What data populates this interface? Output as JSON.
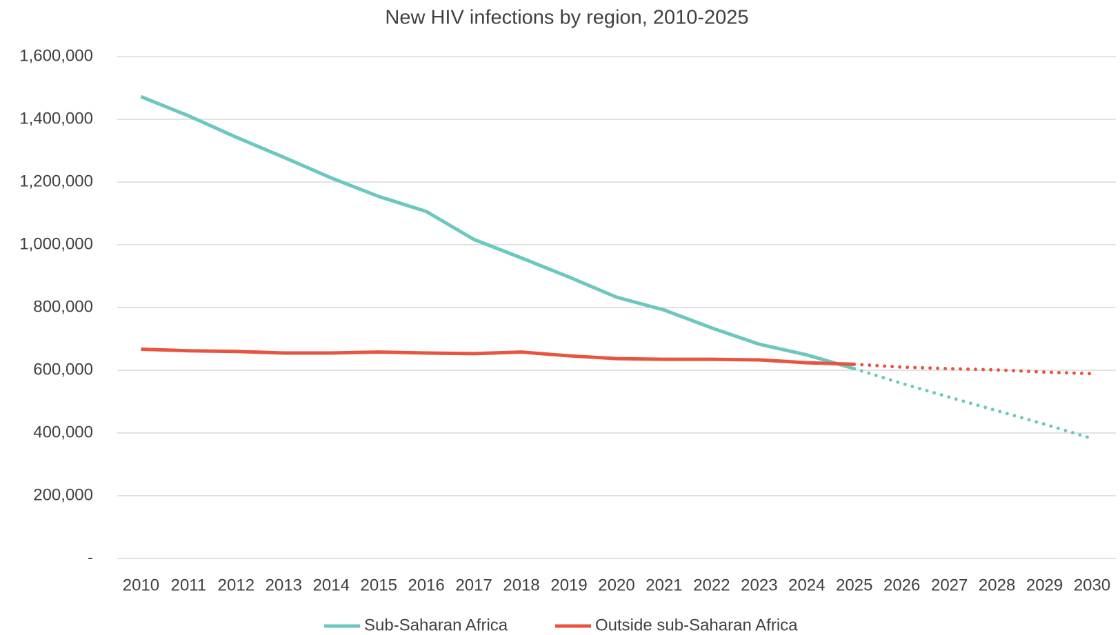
{
  "chart_data": {
    "type": "line",
    "title": "New HIV infections by region, 2010-2025",
    "categories": [
      "2010",
      "2011",
      "2012",
      "2013",
      "2014",
      "2015",
      "2016",
      "2017",
      "2018",
      "2019",
      "2020",
      "2021",
      "2022",
      "2023",
      "2024",
      "2025",
      "2026",
      "2027",
      "2028",
      "2029",
      "2030"
    ],
    "series": [
      {
        "name": "Sub-Saharan Africa",
        "color": "#6cc7bd",
        "values": [
          1472000,
          1411000,
          1343000,
          1279000,
          1213000,
          1154000,
          1106000,
          1017000,
          958000,
          897000,
          833000,
          792000,
          735000,
          683000,
          649000,
          605000,
          null,
          null,
          null,
          null,
          null
        ],
        "projection": [
          null,
          null,
          null,
          null,
          null,
          null,
          null,
          null,
          null,
          null,
          null,
          null,
          null,
          null,
          null,
          null,
          558000,
          514000,
          471000,
          428000,
          382000
        ]
      },
      {
        "name": "Outside sub-Saharan Africa",
        "color": "#e8553f",
        "values": [
          667000,
          662000,
          660000,
          655000,
          655000,
          658000,
          655000,
          653000,
          658000,
          646000,
          637000,
          635000,
          635000,
          633000,
          624000,
          619000,
          null,
          null,
          null,
          null,
          null
        ],
        "projection": [
          null,
          null,
          null,
          null,
          null,
          null,
          null,
          null,
          null,
          null,
          null,
          null,
          null,
          null,
          null,
          null,
          610000,
          605000,
          601000,
          594000,
          589000
        ]
      }
    ],
    "ylim": [
      0,
      1600000
    ],
    "yticks": [
      {
        "value": 0,
        "label": "-"
      },
      {
        "value": 200000,
        "label": "200,000"
      },
      {
        "value": 400000,
        "label": "400,000"
      },
      {
        "value": 600000,
        "label": "600,000"
      },
      {
        "value": 800000,
        "label": "800,000"
      },
      {
        "value": 1000000,
        "label": "1,000,000"
      },
      {
        "value": 1200000,
        "label": "1,200,000"
      },
      {
        "value": 1400000,
        "label": "1,400,000"
      },
      {
        "value": 1600000,
        "label": "1,600,000"
      }
    ],
    "grid": true,
    "legend": "bottom"
  }
}
